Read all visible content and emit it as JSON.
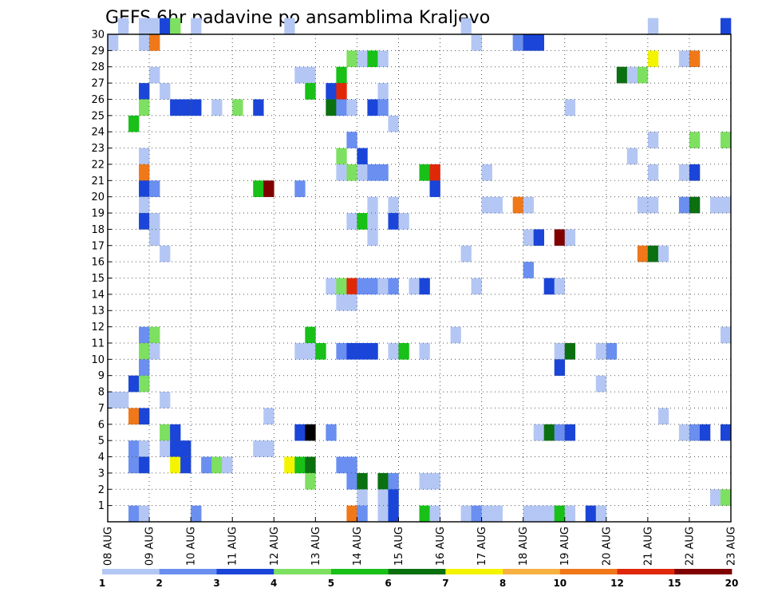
{
  "chart_data": {
    "type": "heatmap",
    "title": "GEFS 6hr padavine po ansamblima Kraljevo",
    "ylim": [
      0,
      30
    ],
    "y_tick_labels": [
      "1",
      "2",
      "3",
      "4",
      "5",
      "6",
      "7",
      "8",
      "9",
      "10",
      "11",
      "12",
      "13",
      "14",
      "15",
      "16",
      "17",
      "18",
      "19",
      "20",
      "21",
      "22",
      "23",
      "24",
      "25",
      "26",
      "27",
      "28",
      "29",
      "30"
    ],
    "x_tick_labels": [
      "08 AUG",
      "09 AUG",
      "10 AUG",
      "11 AUG",
      "12 AUG",
      "13 AUG",
      "14 AUG",
      "15 AUG",
      "16 AUG",
      "17 AUG",
      "18 AUG",
      "19 AUG",
      "20 AUG",
      "21 AUG",
      "22 AUG",
      "23 AUG"
    ],
    "x_step_hours": 6,
    "grid": true,
    "legend": {
      "placement": "bottom",
      "tick_labels": [
        "1",
        "2",
        "3",
        "4",
        "5",
        "6",
        "7",
        "8",
        "10",
        "12",
        "15",
        "20"
      ],
      "colors": [
        "#b4c7f4",
        "#6a8ff0",
        "#1a45d8",
        "#7de060",
        "#18c018",
        "#0a7010",
        "#f4f400",
        "#f8b040",
        "#f07818",
        "#e02808",
        "#800000"
      ]
    },
    "cells": [
      [
        1,
        30,
        1
      ],
      [
        3,
        30,
        1
      ],
      [
        4,
        30,
        1
      ],
      [
        5,
        30,
        3
      ],
      [
        6,
        30,
        4
      ],
      [
        8,
        30,
        1
      ],
      [
        17,
        30,
        1
      ],
      [
        34,
        30,
        1
      ],
      [
        52,
        30,
        1
      ],
      [
        59,
        30,
        3
      ],
      [
        0,
        29,
        1
      ],
      [
        3,
        29,
        1
      ],
      [
        4,
        29,
        9
      ],
      [
        35,
        29,
        1
      ],
      [
        39,
        29,
        2
      ],
      [
        40,
        29,
        3
      ],
      [
        41,
        29,
        3
      ],
      [
        23,
        28,
        4
      ],
      [
        24,
        28,
        1
      ],
      [
        25,
        28,
        5
      ],
      [
        26,
        28,
        1
      ],
      [
        52,
        28,
        7
      ],
      [
        55,
        28,
        1
      ],
      [
        56,
        28,
        9
      ],
      [
        4,
        27,
        1
      ],
      [
        18,
        27,
        1
      ],
      [
        19,
        27,
        1
      ],
      [
        22,
        27,
        5
      ],
      [
        49,
        27,
        6
      ],
      [
        50,
        27,
        1
      ],
      [
        51,
        27,
        4
      ],
      [
        3,
        26,
        3
      ],
      [
        5,
        26,
        1
      ],
      [
        19,
        26,
        5
      ],
      [
        21,
        26,
        3
      ],
      [
        22,
        26,
        10
      ],
      [
        26,
        26,
        1
      ],
      [
        3,
        25,
        4
      ],
      [
        6,
        25,
        3
      ],
      [
        7,
        25,
        3
      ],
      [
        8,
        25,
        3
      ],
      [
        10,
        25,
        1
      ],
      [
        12,
        25,
        4
      ],
      [
        14,
        25,
        3
      ],
      [
        21,
        25,
        6
      ],
      [
        22,
        25,
        2
      ],
      [
        23,
        25,
        1
      ],
      [
        25,
        25,
        3
      ],
      [
        26,
        25,
        2
      ],
      [
        44,
        25,
        1
      ],
      [
        2,
        24,
        5
      ],
      [
        27,
        24,
        1
      ],
      [
        23,
        23,
        2
      ],
      [
        52,
        23,
        1
      ],
      [
        56,
        23,
        4
      ],
      [
        59,
        23,
        4
      ],
      [
        3,
        22,
        1
      ],
      [
        22,
        22,
        4
      ],
      [
        24,
        22,
        3
      ],
      [
        50,
        22,
        1
      ],
      [
        3,
        21,
        9
      ],
      [
        22,
        21,
        1
      ],
      [
        23,
        21,
        4
      ],
      [
        24,
        21,
        1
      ],
      [
        25,
        21,
        2
      ],
      [
        26,
        21,
        2
      ],
      [
        30,
        21,
        5
      ],
      [
        31,
        21,
        10
      ],
      [
        36,
        21,
        1
      ],
      [
        52,
        21,
        1
      ],
      [
        55,
        21,
        1
      ],
      [
        56,
        21,
        3
      ],
      [
        3,
        20,
        3
      ],
      [
        4,
        20,
        2
      ],
      [
        14,
        20,
        5
      ],
      [
        15,
        20,
        11
      ],
      [
        18,
        20,
        2
      ],
      [
        31,
        20,
        3
      ],
      [
        3,
        19,
        1
      ],
      [
        25,
        19,
        1
      ],
      [
        27,
        19,
        1
      ],
      [
        36,
        19,
        1
      ],
      [
        37,
        19,
        1
      ],
      [
        39,
        19,
        9
      ],
      [
        40,
        19,
        1
      ],
      [
        51,
        19,
        1
      ],
      [
        52,
        19,
        1
      ],
      [
        55,
        19,
        2
      ],
      [
        56,
        19,
        6
      ],
      [
        58,
        19,
        1
      ],
      [
        59,
        19,
        1
      ],
      [
        3,
        18,
        3
      ],
      [
        4,
        18,
        1
      ],
      [
        23,
        18,
        1
      ],
      [
        24,
        18,
        5
      ],
      [
        25,
        18,
        1
      ],
      [
        27,
        18,
        3
      ],
      [
        28,
        18,
        1
      ],
      [
        4,
        17,
        1
      ],
      [
        25,
        17,
        1
      ],
      [
        40,
        17,
        1
      ],
      [
        41,
        17,
        3
      ],
      [
        43,
        17,
        11
      ],
      [
        44,
        17,
        1
      ],
      [
        5,
        16,
        1
      ],
      [
        34,
        16,
        1
      ],
      [
        51,
        16,
        9
      ],
      [
        52,
        16,
        6
      ],
      [
        53,
        16,
        1
      ],
      [
        40,
        15,
        2
      ],
      [
        21,
        14,
        1
      ],
      [
        22,
        14,
        4
      ],
      [
        23,
        14,
        10
      ],
      [
        24,
        14,
        2
      ],
      [
        25,
        14,
        2
      ],
      [
        26,
        14,
        1
      ],
      [
        27,
        14,
        2
      ],
      [
        29,
        14,
        1
      ],
      [
        30,
        14,
        3
      ],
      [
        35,
        14,
        1
      ],
      [
        42,
        14,
        3
      ],
      [
        43,
        14,
        1
      ],
      [
        22,
        13,
        1
      ],
      [
        23,
        13,
        1
      ],
      [
        3,
        11,
        2
      ],
      [
        4,
        11,
        4
      ],
      [
        19,
        11,
        5
      ],
      [
        33,
        11,
        1
      ],
      [
        59,
        11,
        1
      ],
      [
        3,
        10,
        4
      ],
      [
        4,
        10,
        1
      ],
      [
        18,
        10,
        1
      ],
      [
        19,
        10,
        1
      ],
      [
        20,
        10,
        5
      ],
      [
        22,
        10,
        2
      ],
      [
        23,
        10,
        3
      ],
      [
        24,
        10,
        3
      ],
      [
        25,
        10,
        3
      ],
      [
        27,
        10,
        1
      ],
      [
        28,
        10,
        5
      ],
      [
        30,
        10,
        1
      ],
      [
        43,
        10,
        1
      ],
      [
        44,
        10,
        6
      ],
      [
        47,
        10,
        1
      ],
      [
        48,
        10,
        2
      ],
      [
        3,
        9,
        2
      ],
      [
        43,
        9,
        3
      ],
      [
        2,
        8,
        3
      ],
      [
        3,
        8,
        4
      ],
      [
        47,
        8,
        1
      ],
      [
        0,
        7,
        1
      ],
      [
        1,
        7,
        1
      ],
      [
        5,
        7,
        1
      ],
      [
        2,
        6,
        9
      ],
      [
        3,
        6,
        3
      ],
      [
        15,
        6,
        1
      ],
      [
        53,
        6,
        1
      ],
      [
        5,
        5,
        4
      ],
      [
        6,
        5,
        3
      ],
      [
        18,
        5,
        3
      ],
      [
        19,
        5,
        12
      ],
      [
        21,
        5,
        2
      ],
      [
        41,
        5,
        1
      ],
      [
        42,
        5,
        6
      ],
      [
        43,
        5,
        2
      ],
      [
        44,
        5,
        3
      ],
      [
        55,
        5,
        1
      ],
      [
        56,
        5,
        2
      ],
      [
        57,
        5,
        3
      ],
      [
        59,
        5,
        3
      ],
      [
        2,
        4,
        2
      ],
      [
        3,
        4,
        1
      ],
      [
        5,
        4,
        1
      ],
      [
        6,
        4,
        3
      ],
      [
        7,
        4,
        3
      ],
      [
        14,
        4,
        1
      ],
      [
        15,
        4,
        1
      ],
      [
        2,
        3,
        2
      ],
      [
        3,
        3,
        3
      ],
      [
        6,
        3,
        7
      ],
      [
        7,
        3,
        3
      ],
      [
        9,
        3,
        2
      ],
      [
        10,
        3,
        4
      ],
      [
        11,
        3,
        1
      ],
      [
        17,
        3,
        7
      ],
      [
        18,
        3,
        5
      ],
      [
        19,
        3,
        6
      ],
      [
        22,
        3,
        2
      ],
      [
        23,
        3,
        2
      ],
      [
        19,
        2,
        4
      ],
      [
        23,
        2,
        2
      ],
      [
        24,
        2,
        6
      ],
      [
        26,
        2,
        6
      ],
      [
        27,
        2,
        2
      ],
      [
        30,
        2,
        1
      ],
      [
        31,
        2,
        1
      ],
      [
        24,
        1,
        1
      ],
      [
        26,
        1,
        1
      ],
      [
        27,
        1,
        3
      ],
      [
        58,
        1,
        1
      ],
      [
        59,
        1,
        4
      ],
      [
        2,
        0,
        2
      ],
      [
        3,
        0,
        1
      ],
      [
        8,
        0,
        2
      ],
      [
        23,
        0,
        9
      ],
      [
        24,
        0,
        2
      ],
      [
        26,
        0,
        1
      ],
      [
        27,
        0,
        3
      ],
      [
        30,
        0,
        5
      ],
      [
        31,
        0,
        1
      ],
      [
        34,
        0,
        1
      ],
      [
        35,
        0,
        2
      ],
      [
        36,
        0,
        1
      ],
      [
        37,
        0,
        1
      ],
      [
        40,
        0,
        1
      ],
      [
        41,
        0,
        1
      ],
      [
        42,
        0,
        1
      ],
      [
        43,
        0,
        5
      ],
      [
        44,
        0,
        1
      ],
      [
        46,
        0,
        3
      ],
      [
        47,
        0,
        1
      ]
    ]
  }
}
